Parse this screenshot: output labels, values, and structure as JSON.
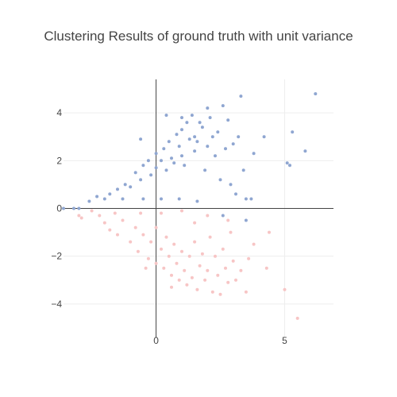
{
  "chart_data": {
    "type": "scatter",
    "title": "Clustering Results of ground truth with unit variance",
    "xlabel": "",
    "ylabel": "",
    "xlim": [
      -3.6,
      6.9
    ],
    "ylim": [
      -5.4,
      5.4
    ],
    "x_ticks": [
      0,
      5
    ],
    "x_tick_labels": [
      "0",
      "5"
    ],
    "y_ticks": [
      -4,
      -2,
      0,
      2,
      4
    ],
    "y_tick_labels": [
      "−4",
      "−2",
      "0",
      "2",
      "4"
    ],
    "grid": true,
    "zero_lines": true,
    "series": [
      {
        "color": "#8fa6d1",
        "points": [
          [
            -3.6,
            0.0
          ],
          [
            -3.2,
            0.0
          ],
          [
            -3.0,
            0.0
          ],
          [
            -2.6,
            0.3
          ],
          [
            -2.3,
            0.5
          ],
          [
            -2.0,
            0.4
          ],
          [
            -1.8,
            0.6
          ],
          [
            -1.5,
            0.8
          ],
          [
            -1.2,
            1.0
          ],
          [
            -1.0,
            0.9
          ],
          [
            -0.8,
            1.5
          ],
          [
            -0.6,
            1.2
          ],
          [
            -0.5,
            1.8
          ],
          [
            -0.3,
            2.0
          ],
          [
            -0.2,
            1.4
          ],
          [
            0.0,
            1.7
          ],
          [
            0.0,
            2.3
          ],
          [
            0.2,
            2.0
          ],
          [
            0.3,
            2.5
          ],
          [
            0.4,
            1.6
          ],
          [
            0.5,
            2.8
          ],
          [
            0.6,
            2.1
          ],
          [
            0.7,
            1.9
          ],
          [
            0.8,
            3.1
          ],
          [
            0.9,
            2.6
          ],
          [
            1.0,
            3.3
          ],
          [
            1.0,
            2.2
          ],
          [
            1.1,
            1.8
          ],
          [
            1.2,
            3.6
          ],
          [
            1.3,
            2.9
          ],
          [
            1.4,
            3.9
          ],
          [
            1.5,
            2.4
          ],
          [
            1.5,
            3.0
          ],
          [
            1.6,
            2.8
          ],
          [
            1.8,
            3.4
          ],
          [
            1.9,
            1.6
          ],
          [
            2.0,
            2.6
          ],
          [
            2.1,
            3.8
          ],
          [
            2.2,
            3.0
          ],
          [
            2.3,
            2.2
          ],
          [
            2.4,
            3.2
          ],
          [
            2.5,
            1.2
          ],
          [
            2.6,
            4.3
          ],
          [
            2.7,
            2.5
          ],
          [
            2.8,
            3.7
          ],
          [
            2.9,
            1.0
          ],
          [
            3.0,
            2.7
          ],
          [
            3.1,
            0.6
          ],
          [
            3.2,
            3.0
          ],
          [
            3.3,
            4.7
          ],
          [
            3.4,
            1.6
          ],
          [
            3.5,
            0.4
          ],
          [
            3.7,
            0.4
          ],
          [
            3.8,
            2.3
          ],
          [
            4.2,
            3.0
          ],
          [
            5.1,
            1.9
          ],
          [
            5.2,
            1.8
          ],
          [
            5.3,
            3.2
          ],
          [
            5.8,
            2.4
          ],
          [
            6.2,
            4.8
          ],
          [
            3.5,
            -0.5
          ],
          [
            2.6,
            -0.3
          ],
          [
            1.6,
            0.3
          ],
          [
            0.9,
            0.4
          ],
          [
            0.2,
            0.4
          ],
          [
            -0.5,
            0.4
          ],
          [
            -1.3,
            0.4
          ],
          [
            0.4,
            3.9
          ],
          [
            -0.6,
            2.9
          ],
          [
            1.0,
            3.8
          ],
          [
            1.7,
            3.6
          ],
          [
            2.0,
            4.2
          ]
        ]
      },
      {
        "color": "#f7c5c5",
        "points": [
          [
            -3.0,
            -0.3
          ],
          [
            -2.9,
            -0.4
          ],
          [
            -2.5,
            -0.1
          ],
          [
            -2.2,
            -0.3
          ],
          [
            -2.0,
            -0.6
          ],
          [
            -1.8,
            -0.9
          ],
          [
            -1.5,
            -1.1
          ],
          [
            -1.3,
            -0.5
          ],
          [
            -1.0,
            -1.4
          ],
          [
            -0.8,
            -0.8
          ],
          [
            -0.7,
            -1.8
          ],
          [
            -0.5,
            -1.1
          ],
          [
            -0.3,
            -2.1
          ],
          [
            -0.2,
            -1.4
          ],
          [
            0.0,
            -2.3
          ],
          [
            0.0,
            -0.8
          ],
          [
            0.2,
            -1.7
          ],
          [
            0.3,
            -2.5
          ],
          [
            0.4,
            -1.2
          ],
          [
            0.5,
            -2.0
          ],
          [
            0.6,
            -2.8
          ],
          [
            0.7,
            -1.5
          ],
          [
            0.8,
            -2.3
          ],
          [
            0.9,
            -3.0
          ],
          [
            1.0,
            -1.8
          ],
          [
            1.1,
            -2.6
          ],
          [
            1.2,
            -3.2
          ],
          [
            1.3,
            -2.0
          ],
          [
            1.4,
            -2.9
          ],
          [
            1.5,
            -1.4
          ],
          [
            1.6,
            -3.4
          ],
          [
            1.7,
            -2.4
          ],
          [
            1.8,
            -1.9
          ],
          [
            1.9,
            -3.0
          ],
          [
            2.0,
            -2.6
          ],
          [
            2.1,
            -1.2
          ],
          [
            2.2,
            -3.5
          ],
          [
            2.3,
            -2.0
          ],
          [
            2.4,
            -2.8
          ],
          [
            2.5,
            -3.6
          ],
          [
            2.6,
            -1.7
          ],
          [
            2.7,
            -2.5
          ],
          [
            2.8,
            -3.1
          ],
          [
            2.9,
            -1.0
          ],
          [
            3.0,
            -2.2
          ],
          [
            3.1,
            -3.0
          ],
          [
            3.3,
            -2.6
          ],
          [
            3.5,
            -3.5
          ],
          [
            3.6,
            -2.1
          ],
          [
            3.8,
            -1.5
          ],
          [
            4.3,
            -2.5
          ],
          [
            4.4,
            -1.0
          ],
          [
            5.0,
            -3.4
          ],
          [
            5.5,
            -4.6
          ],
          [
            2.0,
            -0.3
          ],
          [
            1.0,
            -0.1
          ],
          [
            0.2,
            -0.2
          ],
          [
            -0.6,
            -0.2
          ],
          [
            -1.6,
            -0.2
          ],
          [
            1.5,
            -0.6
          ],
          [
            2.8,
            -0.5
          ],
          [
            0.6,
            -3.3
          ],
          [
            -0.4,
            -2.5
          ]
        ]
      }
    ]
  }
}
